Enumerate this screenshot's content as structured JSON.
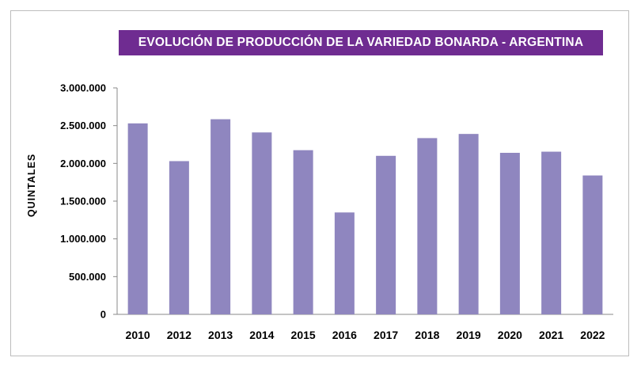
{
  "chart_data": {
    "type": "bar",
    "title": "EVOLUCIÓN DE PRODUCCIÓN DE LA VARIEDAD BONARDA - ARGENTINA",
    "xlabel": "",
    "ylabel": "QUINTALES",
    "categories": [
      "2010",
      "2012",
      "2013",
      "2014",
      "2015",
      "2016",
      "2017",
      "2018",
      "2019",
      "2020",
      "2021",
      "2022"
    ],
    "values": [
      2530000,
      2030000,
      2585000,
      2410000,
      2175000,
      1350000,
      2100000,
      2335000,
      2390000,
      2140000,
      2155000,
      1840000
    ],
    "ylim": [
      0,
      3000000
    ],
    "yticks": [
      0,
      500000,
      1000000,
      1500000,
      2000000,
      2500000,
      3000000
    ],
    "ytick_labels": [
      "0",
      "500.000",
      "1.000.000",
      "1.500.000",
      "2.000.000",
      "2.500.000",
      "3.000.000"
    ],
    "bar_color": "#8f86bf",
    "title_bg": "#6f2c91",
    "grid": false
  }
}
